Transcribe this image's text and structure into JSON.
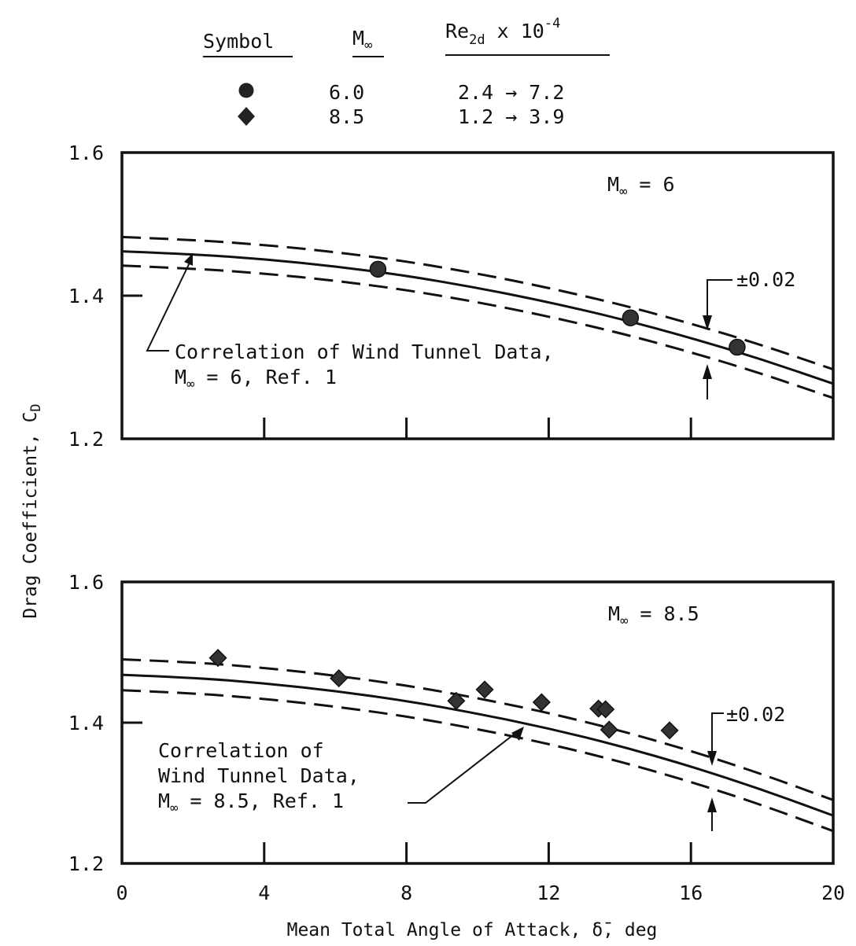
{
  "legend": {
    "header_symbol": "Symbol",
    "header_mach": "M",
    "header_mach_sub": "∞",
    "header_re_main": "Re",
    "header_re_sub": "2d",
    "header_re_tail": " x 10",
    "header_re_exp": "-4",
    "rows": [
      {
        "marker": "circle",
        "mach": "6.0",
        "re": "2.4 → 7.2"
      },
      {
        "marker": "diamond",
        "mach": "8.5",
        "re": "1.2 → 3.9"
      }
    ]
  },
  "axes": {
    "ylabel_main": "Drag Coefficient, C",
    "ylabel_sub": "D",
    "xlabel": "Mean Total Angle of Attack, δ̄, deg"
  },
  "annotations": {
    "top_panel": {
      "mach_main": "M",
      "mach_sub": "∞",
      "mach_value": " = 6",
      "tolerance": "±0.02",
      "corr_line1": "Correlation of Wind Tunnel Data,",
      "corr_line2_main": "M",
      "corr_line2_sub": "∞",
      "corr_line2_tail": " = 6, Ref. 1"
    },
    "bottom_panel": {
      "mach_main": "M",
      "mach_sub": "∞",
      "mach_value": " = 8.5",
      "tolerance": "±0.02",
      "corr_line1": "Correlation of",
      "corr_line2": "Wind Tunnel Data,",
      "corr_line3_main": "M",
      "corr_line3_sub": "∞",
      "corr_line3_tail": " = 8.5, Ref. 1"
    }
  },
  "chart_data": [
    {
      "type": "scatter",
      "panel": "top",
      "mach": 6,
      "xlim": [
        0,
        20
      ],
      "ylim": [
        1.2,
        1.6
      ],
      "yticks": [
        "1.2",
        "1.4",
        "1.6"
      ],
      "xticks": [
        0,
        4,
        8,
        12,
        16,
        20
      ],
      "series": [
        {
          "name": "6.0",
          "marker": "circle",
          "points": [
            [
              7.2,
              1.437
            ],
            [
              14.3,
              1.369
            ],
            [
              17.3,
              1.328
            ]
          ]
        }
      ],
      "correlation": {
        "points": [
          [
            0,
            1.462
          ],
          [
            2,
            1.458
          ],
          [
            4,
            1.451
          ],
          [
            6,
            1.441
          ],
          [
            8,
            1.428
          ],
          [
            10,
            1.411
          ],
          [
            12,
            1.391
          ],
          [
            14,
            1.368
          ],
          [
            16,
            1.341
          ],
          [
            18,
            1.311
          ],
          [
            20,
            1.277
          ]
        ],
        "band": 0.02
      }
    },
    {
      "type": "scatter",
      "panel": "bottom",
      "mach": 8.5,
      "xlim": [
        0,
        20
      ],
      "ylim": [
        1.2,
        1.6
      ],
      "yticks": [
        "1.2",
        "1.4",
        "1.6"
      ],
      "xticks": [
        0,
        4,
        8,
        12,
        16,
        20
      ],
      "x_tick_labels": [
        "0",
        "4",
        "8",
        "12",
        "16",
        "20"
      ],
      "series": [
        {
          "name": "8.5",
          "marker": "diamond",
          "points": [
            [
              2.7,
              1.492
            ],
            [
              6.1,
              1.463
            ],
            [
              9.4,
              1.431
            ],
            [
              10.2,
              1.447
            ],
            [
              11.8,
              1.429
            ],
            [
              13.4,
              1.42
            ],
            [
              13.6,
              1.419
            ],
            [
              13.7,
              1.39
            ],
            [
              15.4,
              1.389
            ]
          ]
        }
      ],
      "correlation": {
        "points": [
          [
            0,
            1.468
          ],
          [
            2,
            1.464
          ],
          [
            4,
            1.456
          ],
          [
            6,
            1.445
          ],
          [
            8,
            1.431
          ],
          [
            10,
            1.413
          ],
          [
            12,
            1.392
          ],
          [
            14,
            1.367
          ],
          [
            16,
            1.338
          ],
          [
            18,
            1.305
          ],
          [
            20,
            1.268
          ]
        ],
        "band": 0.022
      }
    }
  ]
}
